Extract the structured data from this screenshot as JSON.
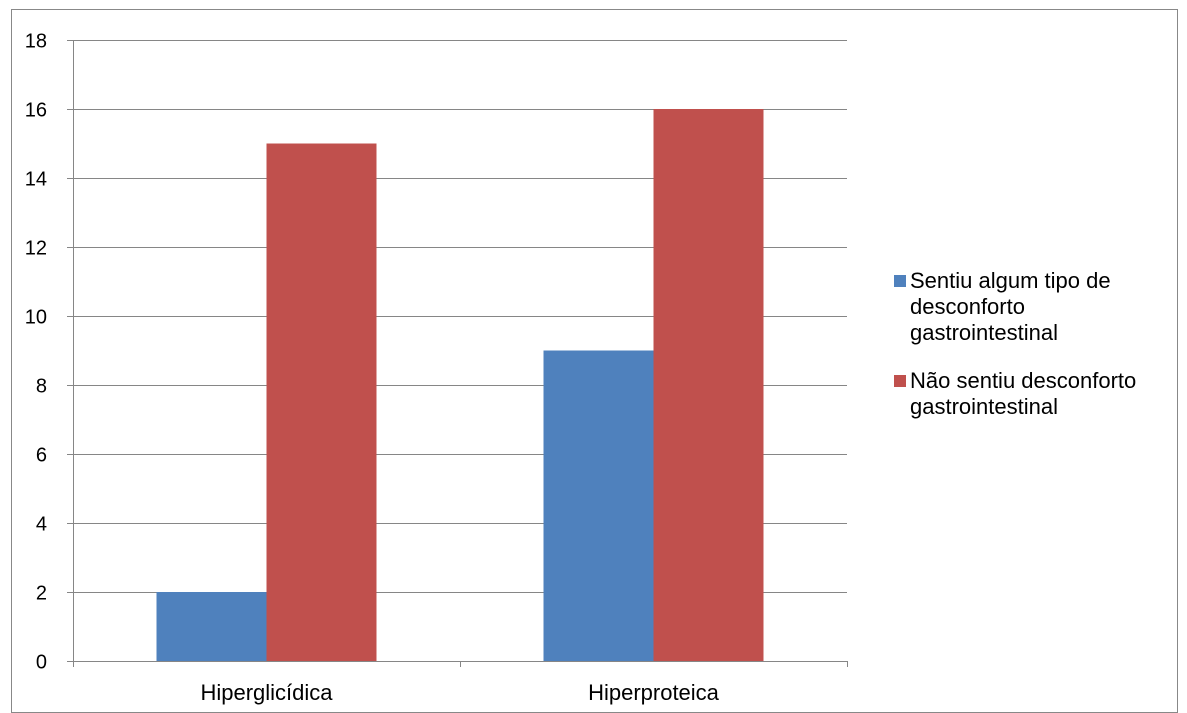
{
  "chart_data": {
    "type": "bar",
    "categories": [
      "Hiperglicídica",
      "Hiperproteica"
    ],
    "series": [
      {
        "name": "Sentiu algum tipo de desconforto gastrointestinal",
        "values": [
          2,
          9
        ],
        "color": "#4F81BD"
      },
      {
        "name": "Não sentiu desconforto gastrointestinal",
        "values": [
          15,
          16
        ],
        "color": "#C0504D"
      }
    ],
    "yticks": [
      "0",
      "2",
      "4",
      "6",
      "8",
      "10",
      "12",
      "14",
      "16",
      "18"
    ],
    "ylim": [
      0,
      18
    ],
    "grid": true,
    "legend_position": "right"
  }
}
